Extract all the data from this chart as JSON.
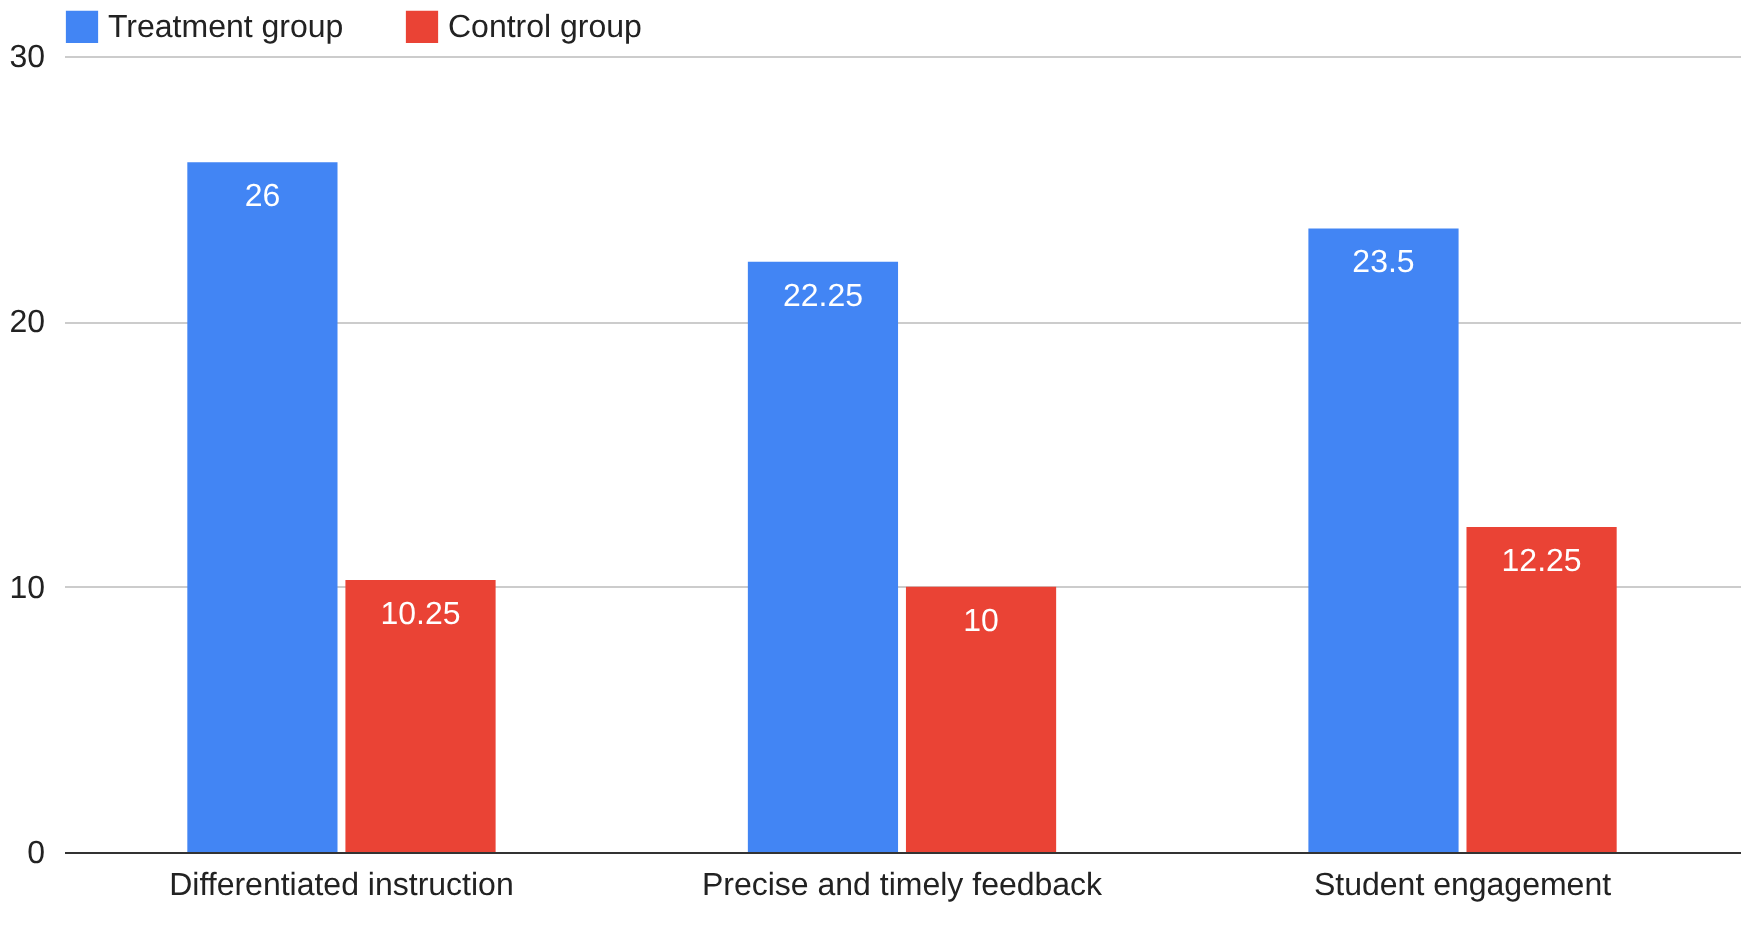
{
  "chart_data": {
    "type": "bar",
    "categories": [
      "Differentiated instruction",
      "Precise and timely feedback",
      "Student engagement"
    ],
    "series": [
      {
        "name": "Treatment group",
        "color": "#4285f4",
        "values": [
          26,
          22.25,
          23.5
        ]
      },
      {
        "name": "Control group",
        "color": "#ea4335",
        "values": [
          10.25,
          10,
          12.25
        ]
      }
    ],
    "ylim": [
      0,
      30
    ],
    "yticks": [
      0,
      10,
      20,
      30
    ],
    "grid": "y",
    "legend": "top",
    "data_labels": true
  }
}
